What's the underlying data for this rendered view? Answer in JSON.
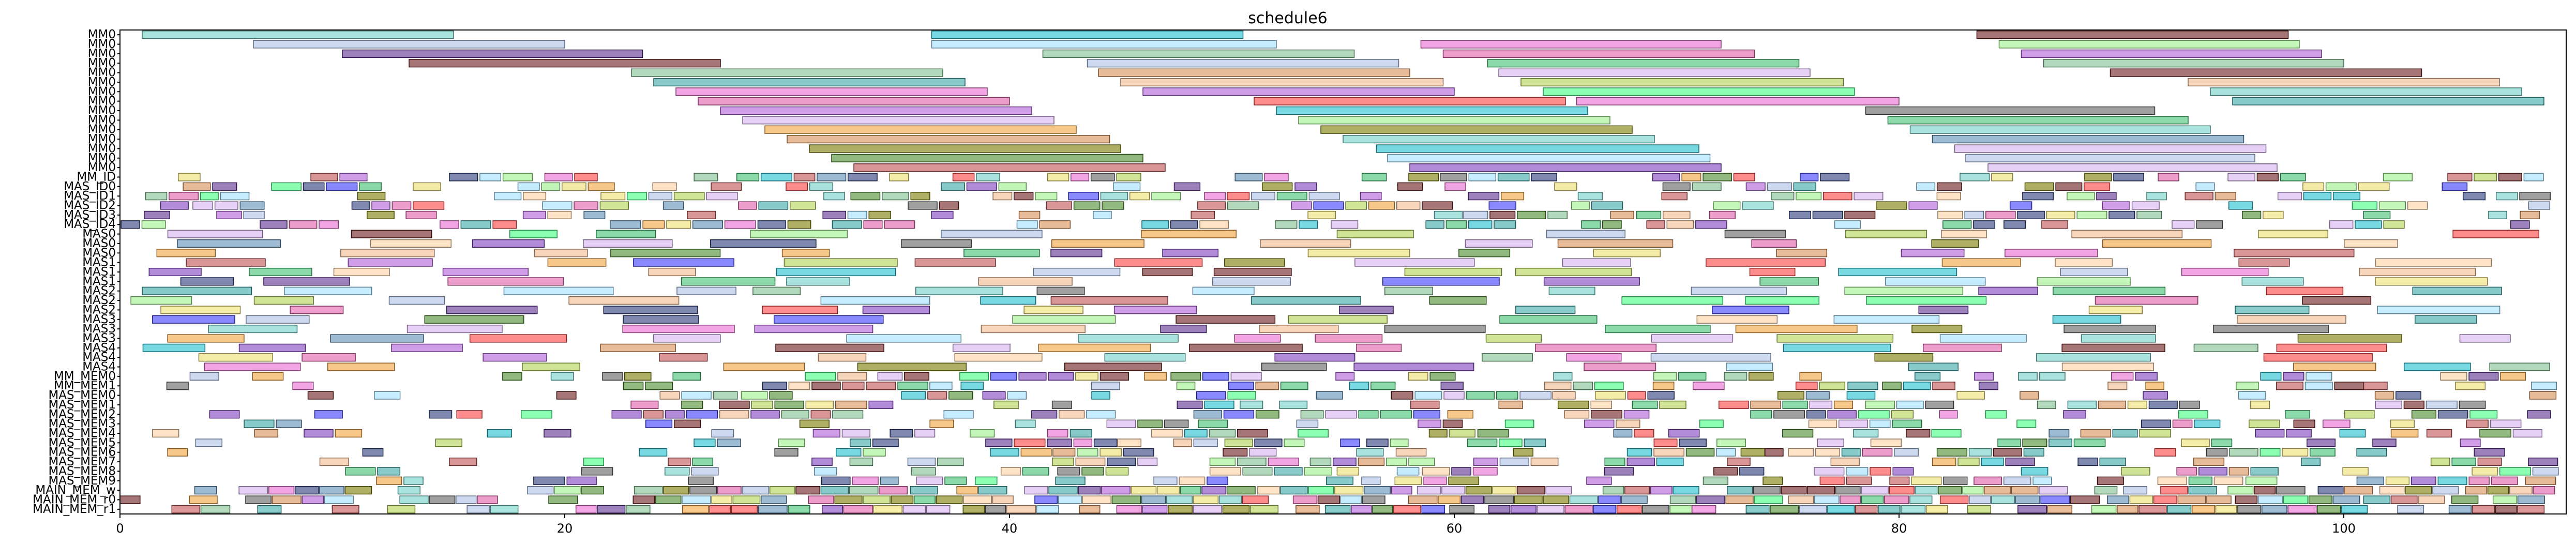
{
  "chart_data": {
    "type": "gantt",
    "title": "schedule6",
    "xlabel": "",
    "ylabel": "",
    "xlim": [
      0,
      110
    ],
    "x_ticks": [
      0,
      20,
      40,
      60,
      80,
      100
    ],
    "grid": false,
    "rows": [
      "MM0",
      "MM0",
      "MM0",
      "MM0",
      "MM0",
      "MM0",
      "MM0",
      "MM0",
      "MM0",
      "MM0",
      "MM0",
      "MM0",
      "MM0",
      "MM0",
      "MM0",
      "MM_ID",
      "MAS_ID0",
      "MAS_ID1",
      "MAS_ID2",
      "MAS_ID3",
      "MAS_ID4",
      "MAS0",
      "MAS0",
      "MAS0",
      "MAS1",
      "MAS1",
      "MAS1",
      "MAS2",
      "MAS2",
      "MAS2",
      "MAS3",
      "MAS3",
      "MAS3",
      "MAS4",
      "MAS4",
      "MAS4",
      "MM_MEM0",
      "MM_MEM1",
      "MAS_MEM0",
      "MAS_MEM1",
      "MAS_MEM2",
      "MAS_MEM3",
      "MAS_MEM4",
      "MAS_MEM5",
      "MAS_MEM6",
      "MAS_MEM7",
      "MAS_MEM8",
      "MAS_MEM9",
      "MAIN_MEM_w",
      "MAIN_MEM_r0",
      "MAIN_MEM_r1"
    ],
    "palette": [
      "#6fd0c8",
      "#aabfe8",
      "#5a2d8f",
      "#6b1a1a",
      "#7fbf8f",
      "#3aa6a6",
      "#d98f55",
      "#f2b98c",
      "#e86bd0",
      "#e05ca8",
      "#b05cd9",
      "#d6b0f0",
      "#ff4040",
      "#f2a33a",
      "#9ef08a",
      "#3fbf6f",
      "#5b8fb8",
      "#2a3a7a",
      "#b0d050",
      "#7a7a00",
      "#f0e070",
      "#3a3aff",
      "#20c0d0",
      "#a0e0ff",
      "#606060",
      "#4a8a2a",
      "#c05050",
      "#ffd0a0",
      "#8040c0",
      "#40ff80"
    ],
    "bars": [
      {
        "row": 0,
        "start": 1.0,
        "end": 15.0,
        "c": 0
      },
      {
        "row": 0,
        "start": 36.5,
        "end": 50.5,
        "c": 22
      },
      {
        "row": 0,
        "start": 83.5,
        "end": 97.5,
        "c": 3
      },
      {
        "row": 1,
        "start": 6.0,
        "end": 20.0,
        "c": 1
      },
      {
        "row": 1,
        "start": 36.5,
        "end": 52.0,
        "c": 23
      },
      {
        "row": 1,
        "start": 58.5,
        "end": 72.0,
        "c": 8
      },
      {
        "row": 1,
        "start": 84.5,
        "end": 98.0,
        "c": 14
      },
      {
        "row": 2,
        "start": 10.0,
        "end": 23.5,
        "c": 2
      },
      {
        "row": 2,
        "start": 41.5,
        "end": 55.5,
        "c": 4
      },
      {
        "row": 2,
        "start": 59.5,
        "end": 73.5,
        "c": 9
      },
      {
        "row": 2,
        "start": 85.5,
        "end": 99.0,
        "c": 10
      },
      {
        "row": 3,
        "start": 13.0,
        "end": 27.0,
        "c": 3
      },
      {
        "row": 3,
        "start": 43.5,
        "end": 57.5,
        "c": 1
      },
      {
        "row": 3,
        "start": 61.5,
        "end": 75.5,
        "c": 15
      },
      {
        "row": 3,
        "start": 86.5,
        "end": 100.0,
        "c": 4
      },
      {
        "row": 4,
        "start": 23.0,
        "end": 37.0,
        "c": 4
      },
      {
        "row": 4,
        "start": 44.0,
        "end": 58.0,
        "c": 6
      },
      {
        "row": 4,
        "start": 62.0,
        "end": 76.0,
        "c": 11
      },
      {
        "row": 4,
        "start": 89.5,
        "end": 103.5,
        "c": 3
      },
      {
        "row": 5,
        "start": 24.0,
        "end": 38.0,
        "c": 5
      },
      {
        "row": 5,
        "start": 45.0,
        "end": 59.5,
        "c": 7
      },
      {
        "row": 5,
        "start": 63.0,
        "end": 77.5,
        "c": 18
      },
      {
        "row": 5,
        "start": 93.0,
        "end": 107.0,
        "c": 7
      },
      {
        "row": 6,
        "start": 25.0,
        "end": 39.0,
        "c": 8
      },
      {
        "row": 6,
        "start": 46.0,
        "end": 60.0,
        "c": 10
      },
      {
        "row": 6,
        "start": 64.0,
        "end": 78.0,
        "c": 29
      },
      {
        "row": 6,
        "start": 94.0,
        "end": 108.0,
        "c": 0
      },
      {
        "row": 7,
        "start": 26.0,
        "end": 40.0,
        "c": 9
      },
      {
        "row": 7,
        "start": 51.0,
        "end": 65.0,
        "c": 12
      },
      {
        "row": 7,
        "start": 65.5,
        "end": 80.0,
        "c": 8
      },
      {
        "row": 7,
        "start": 95.0,
        "end": 109.0,
        "c": 5
      },
      {
        "row": 8,
        "start": 27.0,
        "end": 41.0,
        "c": 10
      },
      {
        "row": 8,
        "start": 52.0,
        "end": 66.0,
        "c": 22
      },
      {
        "row": 8,
        "start": 78.5,
        "end": 91.5,
        "c": 24
      },
      {
        "row": 9,
        "start": 28.0,
        "end": 42.0,
        "c": 11
      },
      {
        "row": 9,
        "start": 53.0,
        "end": 67.0,
        "c": 14
      },
      {
        "row": 9,
        "start": 79.5,
        "end": 93.0,
        "c": 15
      },
      {
        "row": 10,
        "start": 29.0,
        "end": 43.0,
        "c": 13
      },
      {
        "row": 10,
        "start": 54.0,
        "end": 68.0,
        "c": 19
      },
      {
        "row": 10,
        "start": 80.5,
        "end": 94.0,
        "c": 0
      },
      {
        "row": 11,
        "start": 30.0,
        "end": 44.5,
        "c": 6
      },
      {
        "row": 11,
        "start": 55.0,
        "end": 69.0,
        "c": 0
      },
      {
        "row": 11,
        "start": 81.5,
        "end": 95.5,
        "c": 16
      },
      {
        "row": 12,
        "start": 31.0,
        "end": 45.0,
        "c": 19
      },
      {
        "row": 12,
        "start": 56.5,
        "end": 71.0,
        "c": 22
      },
      {
        "row": 12,
        "start": 82.5,
        "end": 96.5,
        "c": 11
      },
      {
        "row": 13,
        "start": 32.0,
        "end": 46.0,
        "c": 25
      },
      {
        "row": 13,
        "start": 57.0,
        "end": 71.5,
        "c": 23
      },
      {
        "row": 13,
        "start": 83.0,
        "end": 96.0,
        "c": 1
      },
      {
        "row": 14,
        "start": 33.0,
        "end": 47.0,
        "c": 26
      },
      {
        "row": 14,
        "start": 58.0,
        "end": 72.0,
        "c": 28
      },
      {
        "row": 14,
        "start": 84.0,
        "end": 97.0,
        "c": 11
      }
    ]
  }
}
